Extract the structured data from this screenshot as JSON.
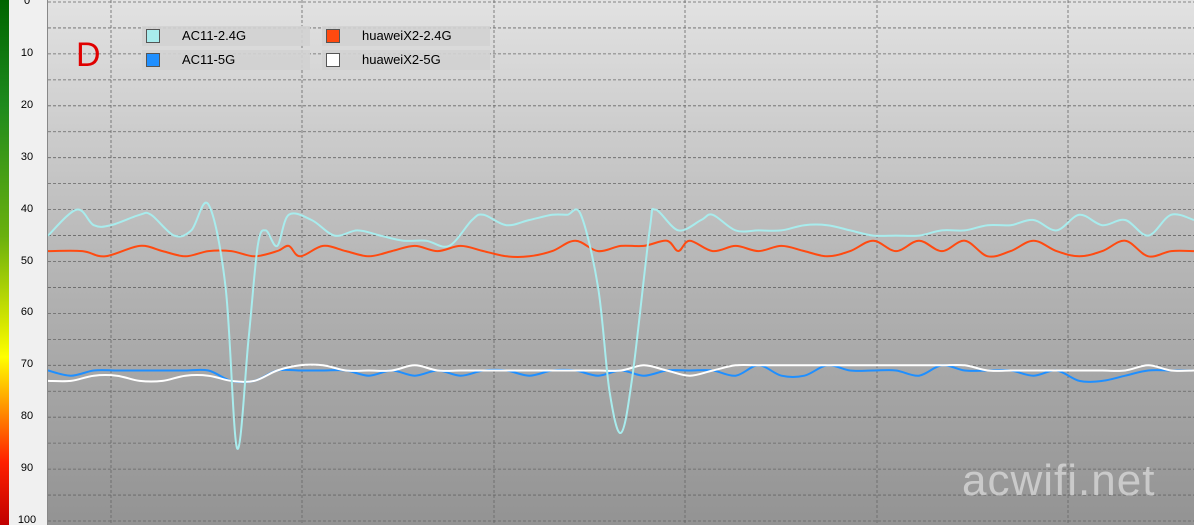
{
  "chart_data": {
    "type": "line",
    "panel_label": "D",
    "watermark": "acwifi.net",
    "y_ticks": [
      "0",
      "10",
      "20",
      "30",
      "40",
      "50",
      "60",
      "70",
      "80",
      "90",
      "100"
    ],
    "ylim": [
      0,
      100
    ],
    "y_inverted": true,
    "xlim": [
      0,
      100
    ],
    "grid": true,
    "legend_position": "top-left",
    "legend": [
      {
        "name": "AC11-2.4G",
        "color": "#a8eced"
      },
      {
        "name": "huaweiX2-2.4G",
        "color": "#ff4a10"
      },
      {
        "name": "AC11-5G",
        "color": "#1f8fff"
      },
      {
        "name": "huaweiX2-5G",
        "color": "#ffffff"
      }
    ],
    "series": [
      {
        "name": "AC11-2.4G",
        "color": "#a8eced",
        "points": [
          [
            0,
            45
          ],
          [
            2.5,
            40
          ],
          [
            4,
            43
          ],
          [
            5.5,
            43
          ],
          [
            8,
            41
          ],
          [
            9,
            41
          ],
          [
            11,
            45
          ],
          [
            12.5,
            44
          ],
          [
            14,
            39
          ],
          [
            15.5,
            55
          ],
          [
            16.5,
            86
          ],
          [
            17.5,
            65
          ],
          [
            18.3,
            47
          ],
          [
            19,
            44
          ],
          [
            20,
            47
          ],
          [
            21,
            41
          ],
          [
            23,
            42
          ],
          [
            25,
            45
          ],
          [
            27,
            44
          ],
          [
            29,
            45
          ],
          [
            31,
            46
          ],
          [
            33,
            46
          ],
          [
            35,
            47
          ],
          [
            37,
            42
          ],
          [
            38,
            41
          ],
          [
            40,
            43
          ],
          [
            42,
            42
          ],
          [
            44,
            41
          ],
          [
            45.3,
            41
          ],
          [
            46.5,
            41
          ],
          [
            48,
            55
          ],
          [
            49,
            75
          ],
          [
            50,
            83
          ],
          [
            51,
            72
          ],
          [
            52.5,
            44
          ],
          [
            53,
            40
          ],
          [
            55,
            44
          ],
          [
            57,
            42
          ],
          [
            58,
            41
          ],
          [
            60,
            44
          ],
          [
            62,
            44
          ],
          [
            64,
            44
          ],
          [
            66,
            43
          ],
          [
            68,
            43
          ],
          [
            70,
            44
          ],
          [
            72,
            45
          ],
          [
            74,
            45
          ],
          [
            76,
            45
          ],
          [
            78,
            44
          ],
          [
            80,
            44
          ],
          [
            82,
            43
          ],
          [
            84,
            43
          ],
          [
            86,
            42
          ],
          [
            88,
            44
          ],
          [
            90,
            41
          ],
          [
            92,
            43
          ],
          [
            94,
            42
          ],
          [
            96,
            45
          ],
          [
            98,
            41
          ],
          [
            100,
            42
          ]
        ]
      },
      {
        "name": "huaweiX2-2.4G",
        "color": "#ff4a10",
        "points": [
          [
            0,
            48
          ],
          [
            3,
            48
          ],
          [
            5,
            49
          ],
          [
            8,
            47
          ],
          [
            10,
            48
          ],
          [
            12,
            49
          ],
          [
            14,
            48
          ],
          [
            16,
            48
          ],
          [
            18,
            49
          ],
          [
            20,
            48
          ],
          [
            21,
            47
          ],
          [
            22,
            49
          ],
          [
            24,
            47
          ],
          [
            26,
            48
          ],
          [
            28,
            49
          ],
          [
            30,
            48
          ],
          [
            32,
            47
          ],
          [
            34,
            48
          ],
          [
            36,
            47
          ],
          [
            38,
            48
          ],
          [
            40,
            49
          ],
          [
            42,
            49
          ],
          [
            44,
            48
          ],
          [
            46,
            46
          ],
          [
            48,
            48
          ],
          [
            50,
            47
          ],
          [
            52,
            47
          ],
          [
            54,
            46
          ],
          [
            55,
            48
          ],
          [
            56,
            46
          ],
          [
            58,
            48
          ],
          [
            60,
            47
          ],
          [
            62,
            48
          ],
          [
            64,
            47
          ],
          [
            66,
            48
          ],
          [
            68,
            49
          ],
          [
            70,
            48
          ],
          [
            72,
            46
          ],
          [
            74,
            48
          ],
          [
            76,
            46
          ],
          [
            78,
            48
          ],
          [
            80,
            46
          ],
          [
            82,
            49
          ],
          [
            84,
            48
          ],
          [
            86,
            46
          ],
          [
            88,
            48
          ],
          [
            90,
            49
          ],
          [
            92,
            48
          ],
          [
            94,
            46
          ],
          [
            96,
            49
          ],
          [
            98,
            48
          ],
          [
            100,
            48
          ]
        ]
      },
      {
        "name": "AC11-5G",
        "color": "#1f8fff",
        "points": [
          [
            0,
            71
          ],
          [
            2,
            72
          ],
          [
            4,
            71
          ],
          [
            6,
            71
          ],
          [
            8,
            71
          ],
          [
            10,
            71
          ],
          [
            12,
            71
          ],
          [
            14,
            71
          ],
          [
            16,
            73
          ],
          [
            18,
            73
          ],
          [
            20,
            71
          ],
          [
            22,
            71
          ],
          [
            24,
            71
          ],
          [
            26,
            71
          ],
          [
            28,
            72
          ],
          [
            30,
            71
          ],
          [
            32,
            72
          ],
          [
            34,
            71
          ],
          [
            36,
            72
          ],
          [
            38,
            71
          ],
          [
            40,
            71
          ],
          [
            42,
            72
          ],
          [
            44,
            71
          ],
          [
            46,
            71
          ],
          [
            48,
            72
          ],
          [
            50,
            71
          ],
          [
            52,
            72
          ],
          [
            54,
            71
          ],
          [
            56,
            71
          ],
          [
            58,
            71
          ],
          [
            60,
            72
          ],
          [
            62,
            70
          ],
          [
            64,
            72
          ],
          [
            66,
            72
          ],
          [
            68,
            70
          ],
          [
            70,
            71
          ],
          [
            72,
            71
          ],
          [
            74,
            71
          ],
          [
            76,
            72
          ],
          [
            78,
            70
          ],
          [
            80,
            71
          ],
          [
            82,
            71
          ],
          [
            84,
            71
          ],
          [
            86,
            72
          ],
          [
            88,
            71
          ],
          [
            90,
            73
          ],
          [
            92,
            73
          ],
          [
            94,
            72
          ],
          [
            96,
            71
          ],
          [
            98,
            71
          ],
          [
            100,
            71
          ]
        ]
      },
      {
        "name": "huaweiX2-5G",
        "color": "#ffffff",
        "points": [
          [
            0,
            73
          ],
          [
            2,
            73
          ],
          [
            4,
            72
          ],
          [
            6,
            72
          ],
          [
            8,
            73
          ],
          [
            10,
            73
          ],
          [
            12,
            72
          ],
          [
            14,
            72
          ],
          [
            16,
            73
          ],
          [
            18,
            73
          ],
          [
            20,
            71
          ],
          [
            22,
            70
          ],
          [
            24,
            70
          ],
          [
            26,
            71
          ],
          [
            28,
            71
          ],
          [
            30,
            71
          ],
          [
            32,
            70
          ],
          [
            34,
            71
          ],
          [
            36,
            71
          ],
          [
            38,
            71
          ],
          [
            40,
            71
          ],
          [
            42,
            71
          ],
          [
            44,
            71
          ],
          [
            46,
            71
          ],
          [
            48,
            71
          ],
          [
            50,
            71
          ],
          [
            52,
            70
          ],
          [
            54,
            71
          ],
          [
            56,
            72
          ],
          [
            58,
            71
          ],
          [
            60,
            70
          ],
          [
            62,
            70
          ],
          [
            64,
            70
          ],
          [
            66,
            70
          ],
          [
            68,
            70
          ],
          [
            70,
            70
          ],
          [
            72,
            70
          ],
          [
            74,
            70
          ],
          [
            76,
            70
          ],
          [
            78,
            70
          ],
          [
            80,
            70
          ],
          [
            82,
            71
          ],
          [
            84,
            71
          ],
          [
            86,
            71
          ],
          [
            88,
            71
          ],
          [
            90,
            71
          ],
          [
            92,
            71
          ],
          [
            94,
            71
          ],
          [
            96,
            70
          ],
          [
            98,
            71
          ],
          [
            100,
            71
          ]
        ]
      }
    ]
  }
}
